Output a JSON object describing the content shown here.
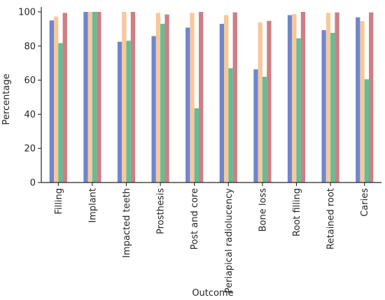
{
  "chart_data": {
    "type": "bar",
    "title": "",
    "xlabel": "Outcome",
    "ylabel": "Percentage",
    "ylim": [
      0,
      100
    ],
    "yticks": [
      0,
      20,
      40,
      60,
      80,
      100
    ],
    "grid": false,
    "legend": "none",
    "categories": [
      "Filling",
      "Implant",
      "Impacted teeth",
      "Prosthesis",
      "Post and core",
      "Periapical radiolucency",
      "Bone loss",
      "Root filling",
      "Retained root",
      "Caries"
    ],
    "series": [
      {
        "color": "#6f86cc",
        "values": [
          95.0,
          100.0,
          82.5,
          85.8,
          90.8,
          93.0,
          66.3,
          98.1,
          89.3,
          96.8
        ]
      },
      {
        "color": "#f8c79a",
        "values": [
          97.3,
          100.0,
          100.0,
          99.4,
          99.4,
          98.1,
          93.8,
          98.7,
          99.4,
          94.6
        ]
      },
      {
        "color": "#5fbf96",
        "values": [
          81.7,
          100.0,
          83.1,
          93.0,
          43.5,
          67.0,
          62.0,
          84.5,
          87.7,
          60.5
        ]
      },
      {
        "color": "#cf7e84",
        "values": [
          99.4,
          100.0,
          100.0,
          98.5,
          100.0,
          99.7,
          94.7,
          100.0,
          99.7,
          99.7
        ]
      }
    ]
  }
}
